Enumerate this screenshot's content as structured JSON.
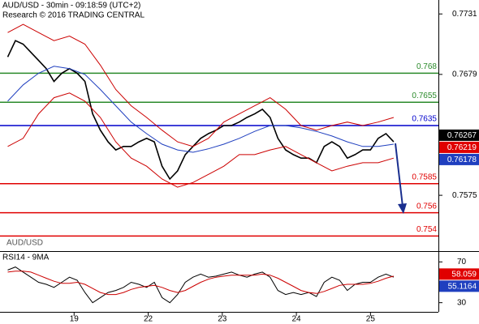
{
  "chart_data": {
    "type": "line",
    "title": "AUD/USD - 30min - 09:18:59 (UTC+2)",
    "subtitle": "Research © 2016 TRADING CENTRAL",
    "xlim": [
      0,
      284
    ],
    "xticks": [
      {
        "value": 48,
        "label": "19"
      },
      {
        "value": 96,
        "label": "22"
      },
      {
        "value": 144,
        "label": "23"
      },
      {
        "value": 192,
        "label": "24"
      },
      {
        "value": 240,
        "label": "25"
      }
    ],
    "ylim": [
      0.7527,
      0.7743
    ],
    "yticks": [
      0.7731,
      0.7679,
      0.7575
    ],
    "x": [
      5,
      10,
      15,
      20,
      25,
      30,
      35,
      40,
      45,
      50,
      55,
      60,
      65,
      70,
      75,
      80,
      85,
      90,
      95,
      100,
      105,
      110,
      115,
      120,
      125,
      130,
      135,
      140,
      145,
      150,
      155,
      160,
      165,
      170,
      175,
      180,
      185,
      190,
      195,
      200,
      205,
      210,
      215,
      220,
      225,
      230,
      235,
      240,
      245,
      250,
      255
    ],
    "series": [
      {
        "name": "AUD/USD",
        "color": "#000000",
        "values": [
          0.7694,
          0.7708,
          0.7705,
          0.7698,
          0.7691,
          0.7684,
          0.7673,
          0.768,
          0.7684,
          0.768,
          0.7673,
          0.7645,
          0.7631,
          0.7621,
          0.7614,
          0.7617,
          0.7617,
          0.7621,
          0.7624,
          0.7621,
          0.76,
          0.7589,
          0.7596,
          0.761,
          0.7617,
          0.7624,
          0.7628,
          0.7631,
          0.7635,
          0.7635,
          0.7638,
          0.7642,
          0.7645,
          0.7649,
          0.7642,
          0.7624,
          0.7614,
          0.761,
          0.7607,
          0.7607,
          0.7603,
          0.7617,
          0.7621,
          0.7617,
          0.7607,
          0.761,
          0.7614,
          0.7614,
          0.7624,
          0.7628,
          0.7621
        ]
      },
      {
        "color": "#1f3fbf",
        "x": [
          5,
          15,
          25,
          35,
          45,
          55,
          65,
          75,
          85,
          95,
          105,
          115,
          125,
          135,
          145,
          155,
          165,
          175,
          185,
          195,
          205,
          215,
          225,
          235,
          245,
          255
        ],
        "values": [
          0.7656,
          0.767,
          0.768,
          0.7686,
          0.7684,
          0.7679,
          0.7666,
          0.7652,
          0.7638,
          0.7628,
          0.7619,
          0.7614,
          0.7612,
          0.7615,
          0.7619,
          0.7624,
          0.763,
          0.7635,
          0.7635,
          0.7633,
          0.763,
          0.7626,
          0.7621,
          0.7617,
          0.7617,
          0.7619
        ]
      },
      {
        "color": "#cc0000",
        "x": [
          5,
          15,
          25,
          35,
          45,
          55,
          65,
          75,
          85,
          95,
          105,
          115,
          125,
          135,
          145,
          155,
          165,
          175,
          185,
          195,
          205,
          215,
          225,
          235,
          245,
          255
        ],
        "values": [
          0.7715,
          0.7722,
          0.7715,
          0.7708,
          0.7712,
          0.7705,
          0.7687,
          0.7666,
          0.7652,
          0.7642,
          0.7631,
          0.7621,
          0.7617,
          0.7624,
          0.7638,
          0.7645,
          0.7652,
          0.7659,
          0.7649,
          0.7635,
          0.7631,
          0.7635,
          0.7638,
          0.7635,
          0.7638,
          0.7642
        ]
      },
      {
        "color": "#cc0000",
        "x": [
          5,
          15,
          25,
          35,
          45,
          55,
          65,
          75,
          85,
          95,
          105,
          115,
          125,
          135,
          145,
          155,
          165,
          175,
          185,
          195,
          205,
          215,
          225,
          235,
          245,
          255
        ],
        "values": [
          0.7617,
          0.7624,
          0.7645,
          0.7659,
          0.7663,
          0.7656,
          0.7642,
          0.7621,
          0.7607,
          0.76,
          0.7589,
          0.7582,
          0.7586,
          0.7593,
          0.76,
          0.761,
          0.761,
          0.7614,
          0.7617,
          0.761,
          0.7603,
          0.7596,
          0.76,
          0.7603,
          0.7603,
          0.7607
        ]
      }
    ],
    "levels": [
      {
        "value": 0.768,
        "color": "#2a8a2a"
      },
      {
        "value": 0.7655,
        "color": "#2a8a2a"
      },
      {
        "value": 0.7635,
        "color": "#0000cc"
      },
      {
        "value": 0.7585,
        "color": "#e00000"
      },
      {
        "value": 0.756,
        "color": "#e00000"
      },
      {
        "value": 0.754,
        "color": "#e00000"
      }
    ],
    "price_markers": [
      {
        "value": 0.76267,
        "color": "#000000"
      },
      {
        "value": 0.76219,
        "color": "#e00000"
      },
      {
        "value": 0.76178,
        "color": "#1f3fbf"
      }
    ],
    "rsi": {
      "title": "RSI14 - 9MA",
      "ylim": [
        21,
        79
      ],
      "yticks": [
        70,
        30
      ],
      "series": [
        {
          "color": "#000000",
          "values": [
            62,
            65,
            60,
            55,
            50,
            48,
            45,
            50,
            55,
            52,
            40,
            30,
            35,
            40,
            42,
            45,
            50,
            48,
            45,
            50,
            35,
            30,
            38,
            50,
            55,
            58,
            55,
            56,
            58,
            60,
            57,
            55,
            58,
            60,
            55,
            42,
            38,
            40,
            38,
            40,
            36,
            50,
            55,
            52,
            42,
            48,
            50,
            50,
            55,
            58,
            55
          ]
        },
        {
          "color": "#cc0000",
          "values": [
            60,
            61,
            61,
            60,
            57,
            54,
            51,
            49,
            49,
            50,
            48,
            44,
            40,
            38,
            38,
            40,
            43,
            45,
            46,
            47,
            45,
            42,
            40,
            42,
            46,
            50,
            53,
            55,
            56,
            57,
            57,
            57,
            57,
            58,
            57,
            54,
            50,
            46,
            42,
            40,
            39,
            41,
            44,
            47,
            48,
            48,
            48,
            49,
            51,
            54,
            56
          ]
        }
      ],
      "markers": [
        {
          "value": 58.059,
          "color": "#e00000"
        },
        {
          "value": 55.1164,
          "color": "#1f3fbf"
        }
      ]
    }
  }
}
